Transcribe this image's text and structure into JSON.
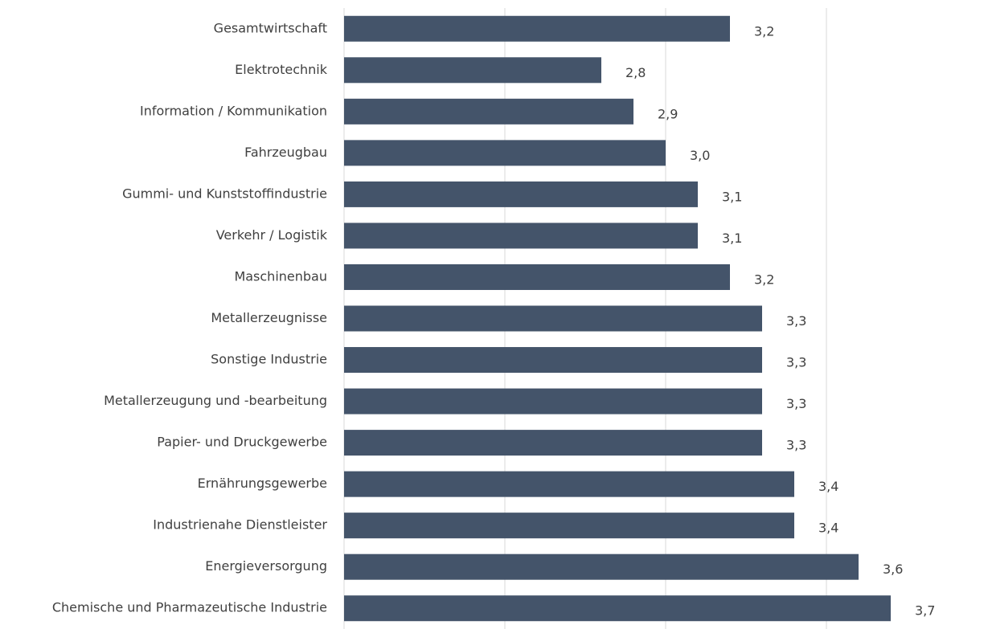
{
  "chart_data": {
    "type": "barh",
    "categories": [
      "Gesamtwirtschaft",
      "Elektrotechnik",
      "Information / Kommunikation",
      "Fahrzeugbau",
      "Gummi- und Kunststoffindustrie",
      "Verkehr / Logistik",
      "Maschinenbau",
      "Metallerzeugnisse",
      "Sonstige Industrie",
      "Metallerzeugung und -bearbeitung",
      "Papier- und Druckgewerbe",
      "Ernährungsgewerbe",
      "Industrienahe Dienstleister",
      "Energieversorgung",
      "Chemische und Pharmazeutische Industrie"
    ],
    "values": [
      3.2,
      2.8,
      2.9,
      3.0,
      3.1,
      3.1,
      3.2,
      3.3,
      3.3,
      3.3,
      3.3,
      3.4,
      3.4,
      3.6,
      3.7
    ],
    "value_labels": [
      "3,2",
      "2,8",
      "2,9",
      "3,0",
      "3,1",
      "3,1",
      "3,2",
      "3,3",
      "3,3",
      "3,3",
      "3,3",
      "3,4",
      "3,4",
      "3,6",
      "3,7"
    ],
    "color": "#44546a",
    "xlim": [
      2,
      4
    ],
    "xticks": [
      2,
      2.5,
      3,
      3.5
    ],
    "grid": true
  }
}
